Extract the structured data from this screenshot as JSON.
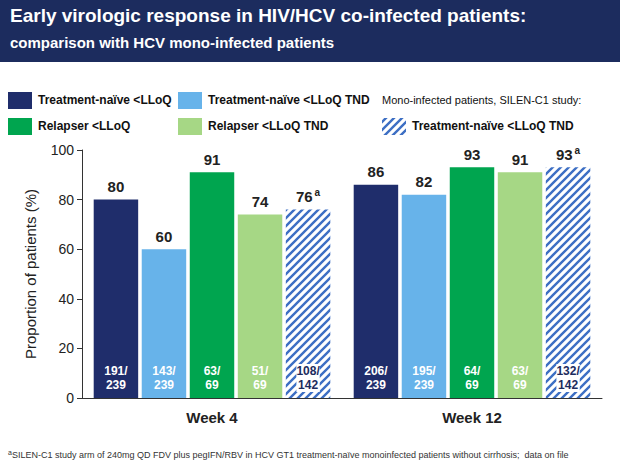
{
  "chart_data": {
    "type": "bar",
    "title": "Early virologic response in HIV/HCV co-infected patients:",
    "subtitle": "comparison with HCV mono-infected patients",
    "y_label": "Proportion of patients (%)",
    "categories": [
      "Week 4",
      "Week 12"
    ],
    "series": [
      {
        "name": "Treatment-naïve <LLoQ",
        "color": "#1f2d6b",
        "values": [
          80,
          86
        ],
        "inner_labels": [
          "191/239",
          "206/239"
        ]
      },
      {
        "name": "Treatment-naïve <LLoQ TND",
        "color": "#67b3ea",
        "values": [
          60,
          82
        ],
        "inner_labels": [
          "143/239",
          "195/239"
        ]
      },
      {
        "name": "Relapser <LLoQ",
        "color": "#00a54f",
        "values": [
          91,
          93
        ],
        "inner_labels": [
          "63/69",
          "64/69"
        ]
      },
      {
        "name": "Relapser <LLoQ TND",
        "color": "#a6d785",
        "values": [
          74,
          91
        ],
        "inner_labels": [
          "51/69",
          "63/69"
        ]
      },
      {
        "name": "Treatment-naïve <LLoQ TND",
        "color": "#3d6fc4",
        "values": [
          76,
          93
        ],
        "value_labels": [
          "76a",
          "93a"
        ],
        "inner_labels": [
          "108/142",
          "132/142"
        ],
        "legend_group": "Mono-infected patients, SILEN-C1 study:"
      }
    ],
    "ylim": [
      0,
      100
    ],
    "yticks": [
      0,
      20,
      40,
      60,
      80,
      100
    ],
    "grid": false,
    "data_labels": true,
    "legend": "top",
    "footnote": {
      "marker": "a",
      "text": "SILEN-C1 study arm of 240mg QD FDV plus pegIFN/RBV in HCV GT1 treatment-naïve monoinfected patients without cirrhosis;  data on file"
    }
  }
}
